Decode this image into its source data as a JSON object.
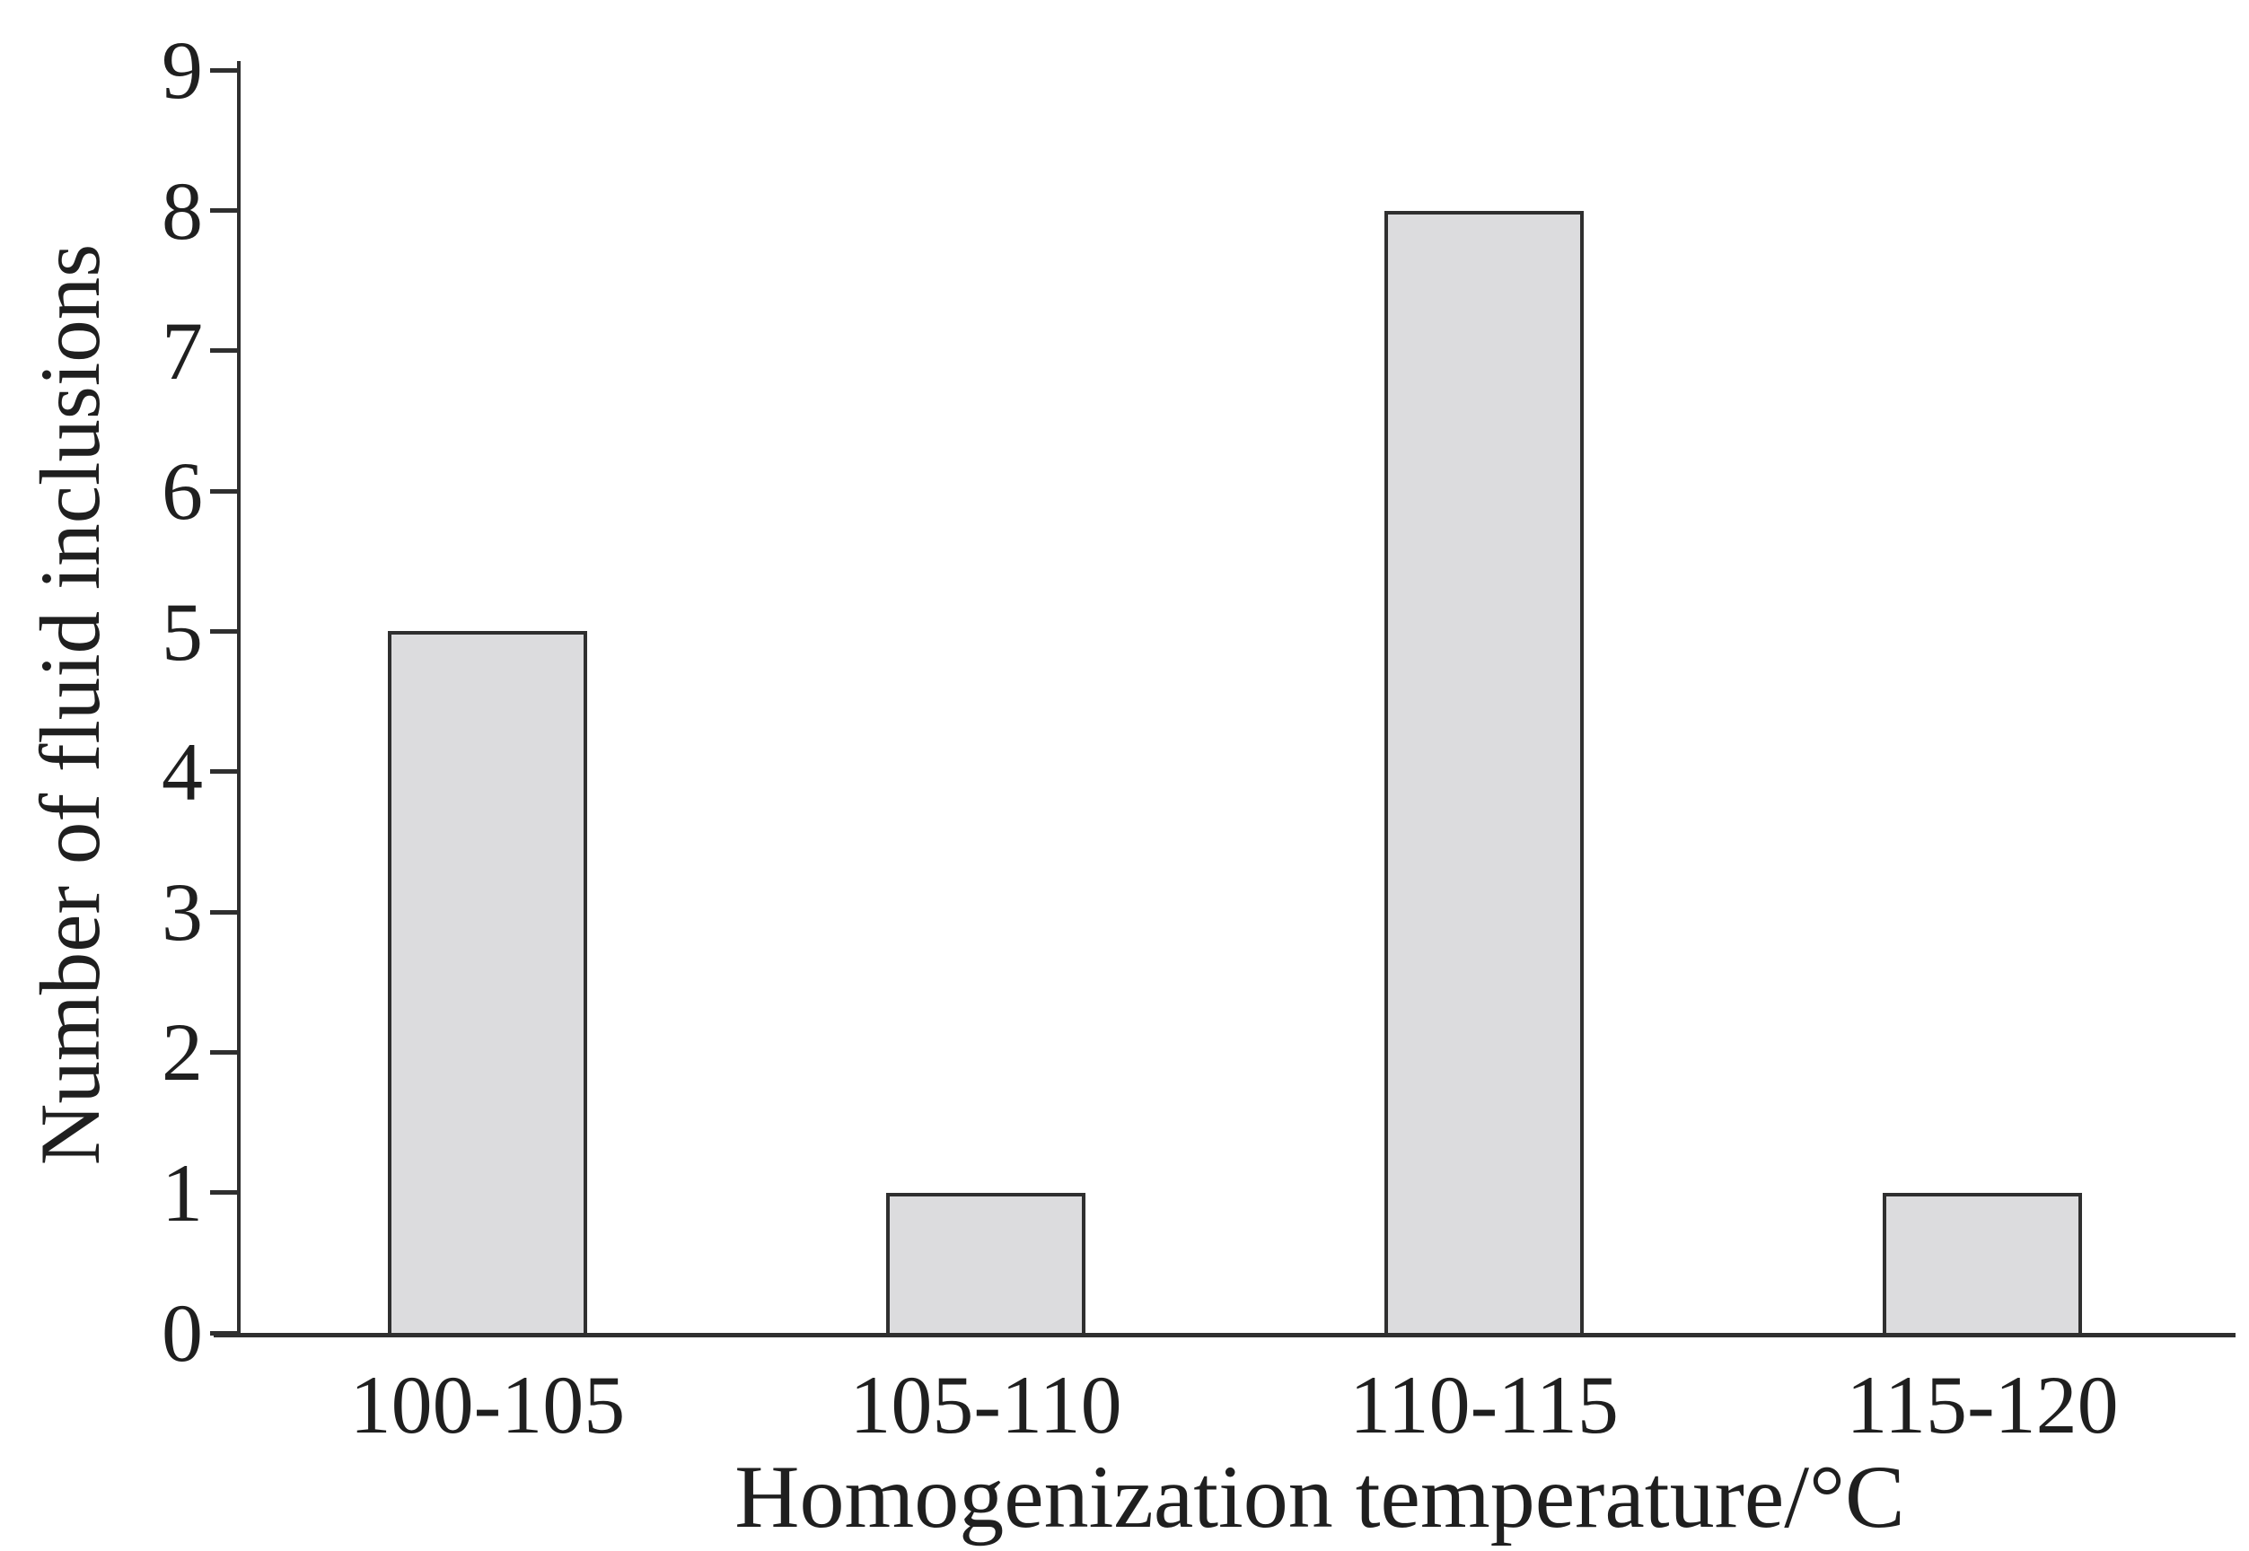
{
  "figure": {
    "background": "#ffffff",
    "text_color": "#1f1f1f",
    "axis_color": "#2f2f2f"
  },
  "chart_data": {
    "type": "bar",
    "title": "",
    "xlabel": "Homogenization temperature/°C",
    "ylabel": "Number of fluid inclusions",
    "categories": [
      "100-105",
      "105-110",
      "110-115",
      "115-120"
    ],
    "values": [
      5,
      1,
      8,
      1
    ],
    "ylim": [
      0,
      9
    ],
    "yticks": [
      0,
      1,
      2,
      3,
      4,
      5,
      6,
      7,
      8,
      9
    ],
    "grid": false,
    "legend": "none",
    "bar_fill": "#dcdcde",
    "bar_border": "#2f2f2f"
  }
}
